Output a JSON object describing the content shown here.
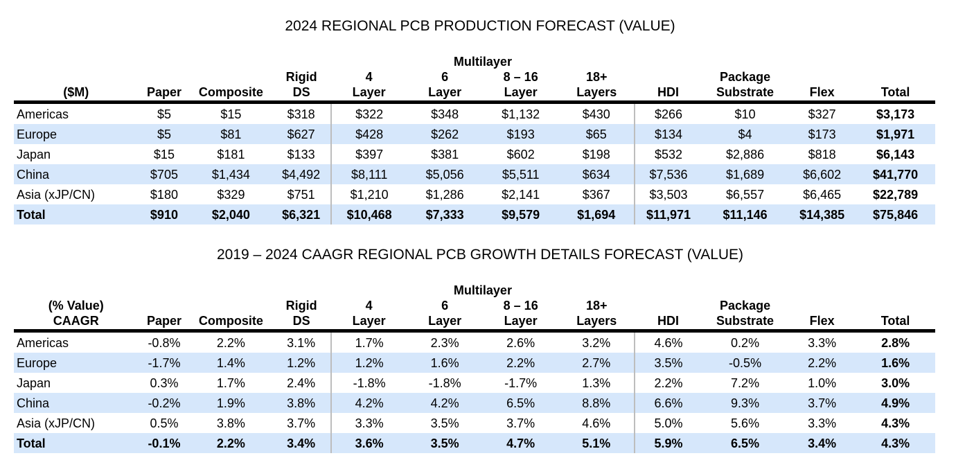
{
  "table1": {
    "title": "2024 REGIONAL PCB PRODUCTION FORECAST (VALUE)",
    "group_header": "Multilayer",
    "corner_label": [
      "($M)"
    ],
    "columns": [
      {
        "lines": [
          "Paper"
        ]
      },
      {
        "lines": [
          "Composite"
        ]
      },
      {
        "lines": [
          "Rigid",
          "DS"
        ]
      },
      {
        "lines": [
          "4",
          "Layer"
        ]
      },
      {
        "lines": [
          "6",
          "Layer"
        ]
      },
      {
        "lines": [
          "8 – 16",
          "Layer"
        ]
      },
      {
        "lines": [
          "18+",
          "Layers"
        ]
      },
      {
        "lines": [
          "HDI"
        ]
      },
      {
        "lines": [
          "Package",
          "Substrate"
        ]
      },
      {
        "lines": [
          "Flex"
        ]
      },
      {
        "lines": [
          "Total"
        ]
      }
    ],
    "rows": [
      {
        "region": "Americas",
        "values": [
          "$5",
          "$15",
          "$318",
          "$322",
          "$348",
          "$1,132",
          "$430",
          "$266",
          "$10",
          "$327",
          "$3,173"
        ]
      },
      {
        "region": "Europe",
        "values": [
          "$5",
          "$81",
          "$627",
          "$428",
          "$262",
          "$193",
          "$65",
          "$134",
          "$4",
          "$173",
          "$1,971"
        ]
      },
      {
        "region": "Japan",
        "values": [
          "$15",
          "$181",
          "$133",
          "$397",
          "$381",
          "$602",
          "$198",
          "$532",
          "$2,886",
          "$818",
          "$6,143"
        ]
      },
      {
        "region": "China",
        "values": [
          "$705",
          "$1,434",
          "$4,492",
          "$8,111",
          "$5,056",
          "$5,511",
          "$634",
          "$7,536",
          "$1,689",
          "$6,602",
          "$41,770"
        ]
      },
      {
        "region": "Asia (xJP/CN)",
        "values": [
          "$180",
          "$329",
          "$751",
          "$1,210",
          "$1,286",
          "$2,141",
          "$367",
          "$3,503",
          "$6,557",
          "$6,465",
          "$22,789"
        ]
      },
      {
        "region": "Total",
        "values": [
          "$910",
          "$2,040",
          "$6,321",
          "$10,468",
          "$7,333",
          "$9,579",
          "$1,694",
          "$11,971",
          "$11,146",
          "$14,385",
          "$75,846"
        ]
      }
    ]
  },
  "table2": {
    "title": "2019 – 2024 CAAGR REGIONAL PCB GROWTH DETAILS FORECAST (VALUE)",
    "group_header": "Multilayer",
    "corner_label": [
      "(% Value)",
      "CAAGR"
    ],
    "columns": [
      {
        "lines": [
          "Paper"
        ]
      },
      {
        "lines": [
          "Composite"
        ]
      },
      {
        "lines": [
          "Rigid",
          "DS"
        ]
      },
      {
        "lines": [
          "4",
          "Layer"
        ]
      },
      {
        "lines": [
          "6",
          "Layer"
        ]
      },
      {
        "lines": [
          "8 – 16",
          "Layer"
        ]
      },
      {
        "lines": [
          "18+",
          "Layers"
        ]
      },
      {
        "lines": [
          "HDI"
        ]
      },
      {
        "lines": [
          "Package",
          "Substrate"
        ]
      },
      {
        "lines": [
          "Flex"
        ]
      },
      {
        "lines": [
          "Total"
        ]
      }
    ],
    "rows": [
      {
        "region": "Americas",
        "values": [
          "-0.8%",
          "2.2%",
          "3.1%",
          "1.7%",
          "2.3%",
          "2.6%",
          "3.2%",
          "4.6%",
          "0.2%",
          "3.3%",
          "2.8%"
        ]
      },
      {
        "region": "Europe",
        "values": [
          "-1.7%",
          "1.4%",
          "1.2%",
          "1.2%",
          "1.6%",
          "2.2%",
          "2.7%",
          "3.5%",
          "-0.5%",
          "2.2%",
          "1.6%"
        ]
      },
      {
        "region": "Japan",
        "values": [
          "0.3%",
          "1.7%",
          "2.4%",
          "-1.8%",
          "-1.8%",
          "-1.7%",
          "1.3%",
          "2.2%",
          "7.2%",
          "1.0%",
          "3.0%"
        ]
      },
      {
        "region": "China",
        "values": [
          "-0.2%",
          "1.9%",
          "3.8%",
          "4.2%",
          "4.2%",
          "6.5%",
          "8.8%",
          "6.6%",
          "9.3%",
          "3.7%",
          "4.9%"
        ]
      },
      {
        "region": "Asia (xJP/CN)",
        "values": [
          "0.5%",
          "3.8%",
          "3.7%",
          "3.3%",
          "3.5%",
          "3.7%",
          "4.6%",
          "5.0%",
          "5.6%",
          "3.3%",
          "4.3%"
        ]
      },
      {
        "region": "Total",
        "values": [
          "-0.1%",
          "2.2%",
          "3.4%",
          "3.6%",
          "3.5%",
          "4.7%",
          "5.1%",
          "5.9%",
          "6.5%",
          "3.4%",
          "4.3%"
        ]
      }
    ]
  },
  "colors": {
    "alt_row_fill": "#d6e7fb",
    "header_rule": "#000000",
    "divider": "#bdbdbd"
  }
}
